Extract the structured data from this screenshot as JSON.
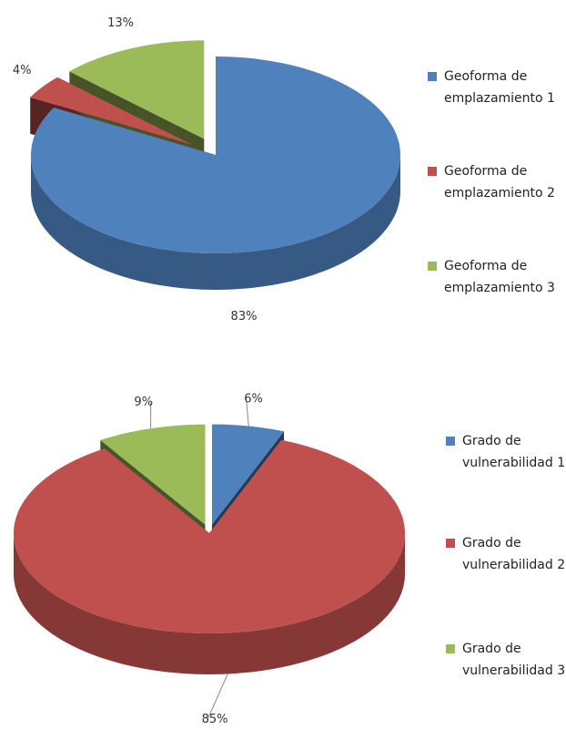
{
  "chart_data": [
    {
      "type": "pie",
      "categories": [
        "Geoforma de emplazamiento 1",
        "Geoforma de emplazamiento 2",
        "Geoforma de emplazamiento 3"
      ],
      "values": [
        83,
        4,
        13
      ],
      "value_labels": [
        "83%",
        "4%",
        "13%"
      ],
      "colors": [
        "#4f81bd",
        "#c0504d",
        "#9bbb59"
      ],
      "legend": "right"
    },
    {
      "type": "pie",
      "categories": [
        "Grado de vulnerabilidad 1",
        "Grado de vulnerabilidad 2",
        "Grado de vulnerabilidad 3"
      ],
      "values": [
        6,
        85,
        9
      ],
      "value_labels": [
        "6%",
        "85%",
        "9%"
      ],
      "colors": [
        "#4f81bd",
        "#c0504d",
        "#9bbb59"
      ],
      "legend": "right"
    }
  ]
}
